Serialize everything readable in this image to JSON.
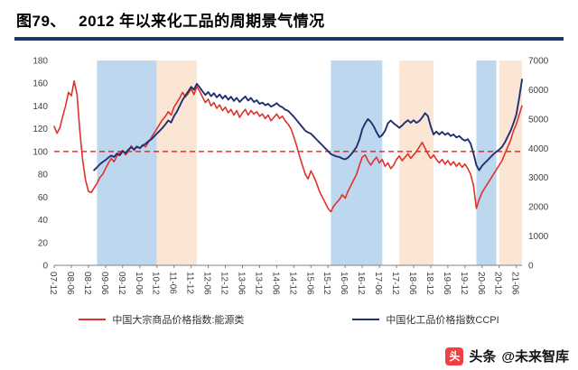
{
  "header": {
    "title": "图79、　 2012 年以来化工品的周期景气情况"
  },
  "colors": {
    "red_line": "#e0312b",
    "navy_line": "#203070",
    "band_blue": "#bdd7ee",
    "band_orange": "#fbe5d5",
    "reference_line": "#ff0000",
    "title_underline": "#1f3864",
    "axis_text": "#404040",
    "axis_line": "#808080",
    "watermark_logo": "#f04142"
  },
  "chart_data": {
    "type": "line",
    "title": "2012 年以来化工品的周期景气情况",
    "x_tick_labels": [
      "07-12",
      "08-06",
      "08-12",
      "09-06",
      "09-12",
      "10-06",
      "10-12",
      "11-06",
      "11-12",
      "12-06",
      "12-12",
      "13-06",
      "13-12",
      "14-06",
      "14-12",
      "15-06",
      "15-12",
      "16-06",
      "16-12",
      "17-06",
      "17-12",
      "18-06",
      "18-12",
      "19-06",
      "19-12",
      "20-06",
      "20-12",
      "21-06"
    ],
    "months_per_tick": 6,
    "x_total_months": 164,
    "axis_left": {
      "min": 0,
      "max": 180,
      "step": 20
    },
    "axis_right": {
      "min": 0,
      "max": 7000,
      "step": 1000
    },
    "reference_line": {
      "axis": "left",
      "value": 100,
      "style": "dashed",
      "color": "#ff0000"
    },
    "legend_position": "bottom",
    "bands": [
      {
        "color": "#bdd7ee",
        "from_m": 15,
        "to_m": 36
      },
      {
        "color": "#fbe5d5",
        "from_m": 36,
        "to_m": 50
      },
      {
        "color": "#bdd7ee",
        "from_m": 97,
        "to_m": 115
      },
      {
        "color": "#fbe5d5",
        "from_m": 121,
        "to_m": 133
      },
      {
        "color": "#bdd7ee",
        "from_m": 148,
        "to_m": 155
      },
      {
        "color": "#fbe5d5",
        "from_m": 156,
        "to_m": 164
      }
    ],
    "series": [
      {
        "name": "中国大宗商品价格指数:能源类",
        "axis": "left",
        "color": "#e0312b",
        "start_m": 0,
        "values": [
          122,
          116,
          121,
          131,
          140,
          152,
          149,
          162,
          150,
          118,
          92,
          75,
          65,
          64,
          68,
          72,
          77,
          80,
          85,
          90,
          94,
          91,
          96,
          99,
          101,
          97,
          100,
          105,
          101,
          104,
          103,
          106,
          104,
          108,
          112,
          116,
          120,
          124,
          128,
          131,
          135,
          132,
          139,
          143,
          147,
          152,
          148,
          151,
          155,
          150,
          157,
          153,
          148,
          143,
          146,
          140,
          143,
          138,
          141,
          136,
          139,
          134,
          137,
          132,
          136,
          130,
          134,
          137,
          132,
          136,
          133,
          135,
          131,
          133,
          129,
          132,
          127,
          130,
          133,
          129,
          131,
          127,
          124,
          120,
          113,
          105,
          96,
          88,
          80,
          76,
          83,
          78,
          72,
          65,
          60,
          55,
          50,
          47,
          52,
          55,
          58,
          62,
          59,
          65,
          70,
          75,
          80,
          88,
          95,
          97,
          92,
          88,
          92,
          95,
          90,
          93,
          87,
          90,
          85,
          88,
          93,
          96,
          92,
          95,
          98,
          94,
          97,
          100,
          104,
          108,
          103,
          98,
          94,
          97,
          93,
          90,
          93,
          89,
          92,
          88,
          91,
          87,
          90,
          86,
          89,
          85,
          80,
          70,
          50,
          58,
          64,
          68,
          72,
          76,
          80,
          84,
          88,
          92,
          98,
          104,
          110,
          118,
          124,
          132,
          140
        ]
      },
      {
        "name": "中国化工品价格指数CCPI",
        "axis": "right",
        "color": "#203070",
        "start_m": 14,
        "values": [
          3250,
          3350,
          3450,
          3530,
          3600,
          3680,
          3750,
          3700,
          3820,
          3760,
          3900,
          3840,
          3950,
          4040,
          3960,
          4060,
          4000,
          4090,
          4150,
          4240,
          4300,
          4400,
          4500,
          4600,
          4700,
          4820,
          4950,
          4880,
          5100,
          5250,
          5450,
          5650,
          5800,
          5950,
          6100,
          6000,
          6200,
          6080,
          5950,
          5820,
          5920,
          5780,
          5880,
          5740,
          5840,
          5700,
          5800,
          5660,
          5760,
          5620,
          5720,
          5580,
          5680,
          5770,
          5630,
          5720,
          5580,
          5640,
          5520,
          5560,
          5470,
          5520,
          5420,
          5470,
          5540,
          5450,
          5400,
          5320,
          5280,
          5180,
          5080,
          4960,
          4840,
          4720,
          4600,
          4540,
          4500,
          4400,
          4300,
          4200,
          4100,
          4000,
          3900,
          3800,
          3760,
          3720,
          3700,
          3650,
          3620,
          3680,
          3780,
          3900,
          4050,
          4300,
          4650,
          4850,
          5000,
          4900,
          4750,
          4550,
          4380,
          4450,
          4600,
          4850,
          4950,
          4850,
          4780,
          4700,
          4780,
          4880,
          4960,
          4870,
          4960,
          4870,
          4930,
          5050,
          5200,
          5100,
          4750,
          4470,
          4570,
          4470,
          4560,
          4460,
          4520,
          4420,
          4470,
          4370,
          4420,
          4320,
          4260,
          4310,
          4160,
          3820,
          3420,
          3250,
          3400,
          3500,
          3600,
          3700,
          3800,
          3880,
          3950,
          4050,
          4200,
          4400,
          4600,
          4850,
          5150,
          5700,
          6350
        ]
      }
    ]
  },
  "watermark": {
    "logo_char": "头",
    "platform": "头条",
    "handle": "@未来智库"
  }
}
